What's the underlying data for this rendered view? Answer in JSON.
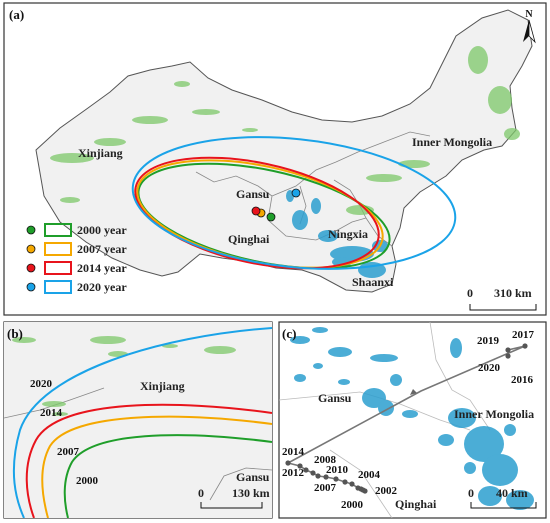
{
  "panel_a": {
    "label": "(a)",
    "north": "N",
    "regions": {
      "xinjiang": "Xinjiang",
      "inner_mongolia": "Inner Mongolia",
      "gansu": "Gansu",
      "qinghai": "Qinghai",
      "ningxia": "Ningxia",
      "shaanxi": "Shaanxi"
    },
    "legend": [
      {
        "label": "2000 year",
        "color": "#1f9e2a"
      },
      {
        "label": "2007 year",
        "color": "#f5a800"
      },
      {
        "label": "2014 year",
        "color": "#e8141c"
      },
      {
        "label": "2020 year",
        "color": "#1aa3e8"
      }
    ],
    "scale": {
      "zero": "0",
      "value": "310 km"
    }
  },
  "panel_b": {
    "label": "(b)",
    "regions": {
      "xinjiang": "Xinjiang",
      "gansu": "Gansu"
    },
    "years": [
      "2020",
      "2014",
      "2007",
      "2000"
    ],
    "scale": {
      "zero": "0",
      "value": "130 km"
    }
  },
  "panel_c": {
    "label": "(c)",
    "regions": {
      "gansu": "Gansu",
      "inner_mongolia": "Inner Mongolia",
      "qinghai": "Qinghai"
    },
    "years": [
      "2019",
      "2017",
      "2020",
      "2016",
      "2014",
      "2012",
      "2008",
      "2010",
      "2004",
      "2007",
      "2002",
      "2000"
    ],
    "scale": {
      "zero": "0",
      "value": "40 km"
    }
  }
}
